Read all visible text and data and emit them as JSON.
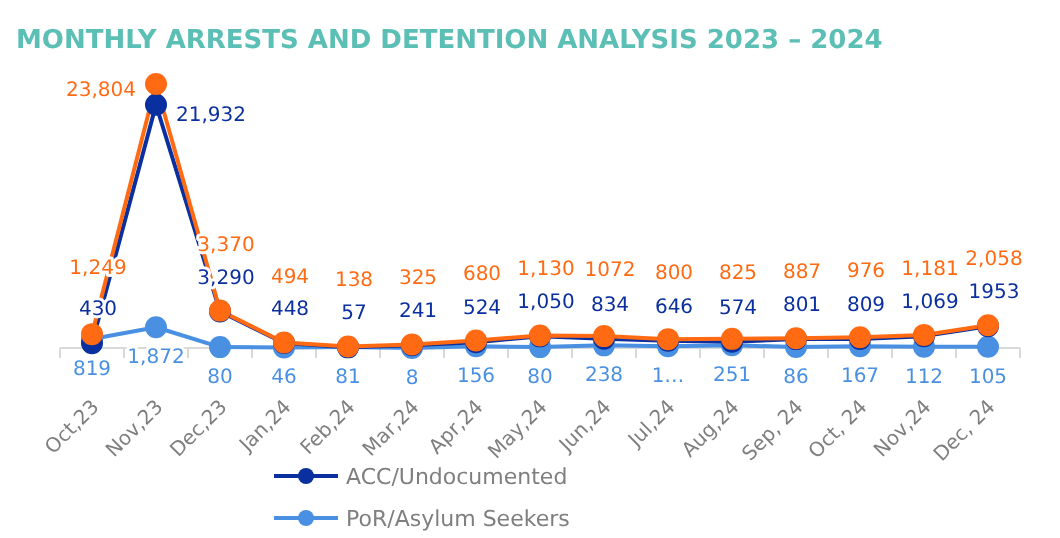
{
  "chart_data": {
    "type": "line",
    "title": "MONTHLY ARRESTS AND DETENTION ANALYSIS 2023 – 2024",
    "categories": [
      "Oct,23",
      "Nov,23",
      "Dec,23",
      "Jan,24",
      "Feb,24",
      "Mar,24",
      "Apr,24",
      "May,24",
      "Jun,24",
      "Jul,24",
      "Aug,24",
      "Sep, 24",
      "Oct, 24",
      "Nov,24",
      "Dec, 24"
    ],
    "series": [
      {
        "color": "#ff6a13",
        "values": [
          1249,
          23804,
          3370,
          494,
          138,
          325,
          680,
          1130,
          1072,
          800,
          825,
          887,
          976,
          1181,
          2058
        ],
        "value_labels": [
          "1,249",
          "23,804",
          "3,370",
          "494",
          "138",
          "325",
          "680",
          "1,130",
          "1072",
          "800",
          "825",
          "887",
          "976",
          "1,181",
          "2,058"
        ]
      },
      {
        "name": "ACC/Undocumented",
        "color": "#0a2f9e",
        "values": [
          430,
          21932,
          3290,
          448,
          57,
          241,
          524,
          1050,
          834,
          646,
          574,
          801,
          809,
          1069,
          1953
        ],
        "value_labels": [
          "430",
          "21,932",
          "3,290",
          "448",
          "57",
          "241",
          "524",
          "1,050",
          "834",
          "646",
          "574",
          "801",
          "809",
          "1,069",
          "1953"
        ]
      },
      {
        "name": "PoR/Asylum Seekers",
        "color": "#4a90e2",
        "values": [
          819,
          1872,
          80,
          46,
          81,
          8,
          156,
          80,
          238,
          154,
          251,
          86,
          167,
          112,
          105
        ],
        "value_labels": [
          "819",
          "1,872",
          "80",
          "46",
          "81",
          "8",
          "156",
          "80",
          "238",
          "1…",
          "251",
          "86",
          "167",
          "112",
          "105"
        ]
      }
    ],
    "marker": "circle",
    "legend": "bottom"
  }
}
